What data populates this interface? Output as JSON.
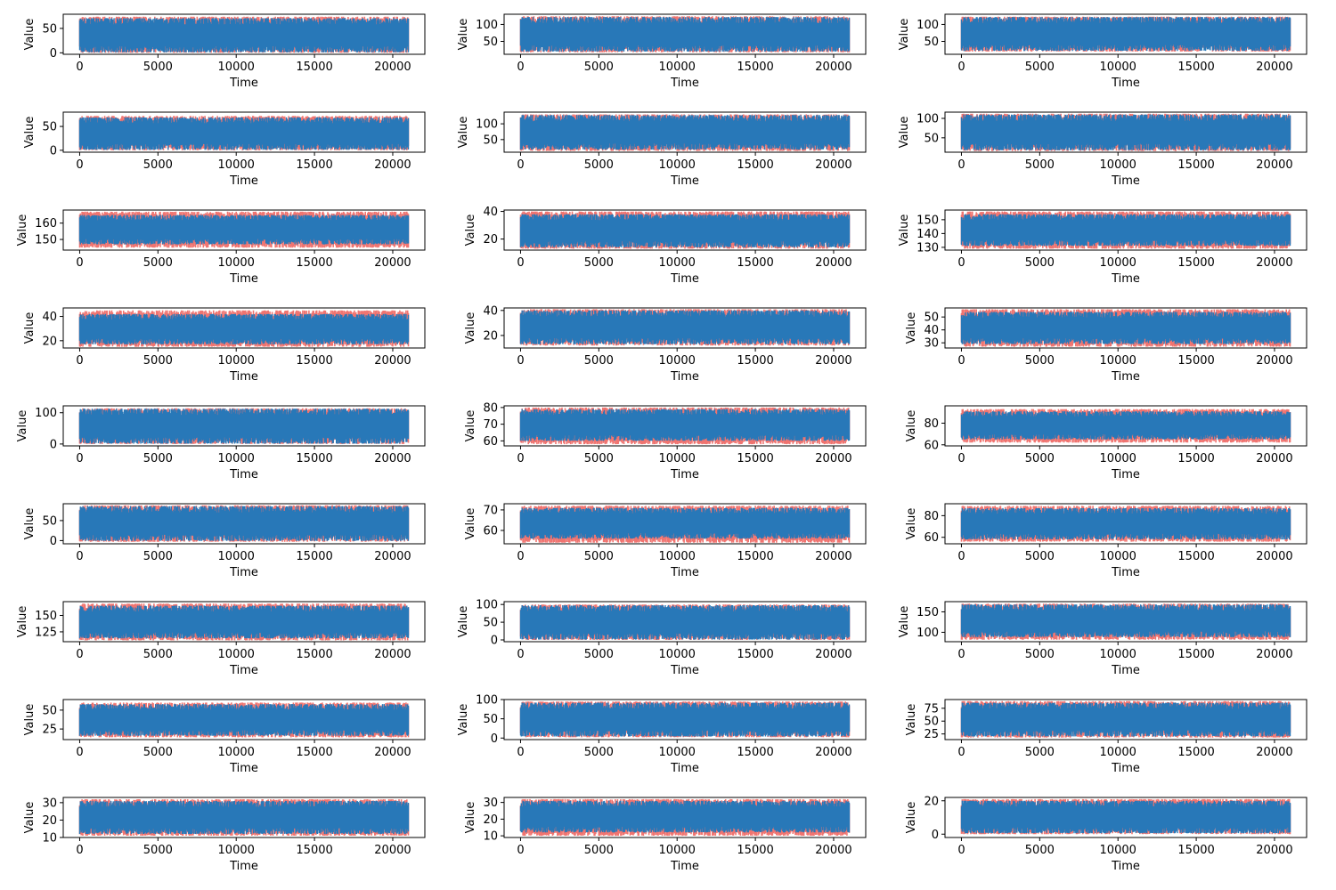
{
  "figure": {
    "background": "#ffffff"
  },
  "colors": {
    "real": "#f07470",
    "generated": "#2878b8",
    "axis": "#000000"
  },
  "chart_data": [
    {
      "type": "line",
      "xlabel": "Time",
      "ylabel": "Value",
      "xlim": [
        -1050,
        22050
      ],
      "ylim": [
        -3,
        79
      ],
      "xticks": [
        0,
        5000,
        10000,
        15000,
        20000
      ],
      "xticklabels": [
        "0",
        "5000",
        "10000",
        "15000",
        "20000"
      ],
      "yticks": [
        0,
        50
      ],
      "yticklabels": [
        "0",
        "50"
      ],
      "series": [
        {
          "envelope_min": 0,
          "envelope_max": 74
        },
        {
          "envelope_min": 1,
          "envelope_max": 71
        }
      ]
    },
    {
      "type": "line",
      "xlabel": "Time",
      "ylabel": "Value",
      "xlim": [
        -1050,
        22050
      ],
      "ylim": [
        12,
        130
      ],
      "xticks": [
        0,
        5000,
        10000,
        15000,
        20000
      ],
      "xticklabels": [
        "0",
        "5000",
        "10000",
        "15000",
        "20000"
      ],
      "yticks": [
        50,
        100
      ],
      "yticklabels": [
        "50",
        "100"
      ],
      "series": [
        {
          "envelope_min": 18,
          "envelope_max": 124
        },
        {
          "envelope_min": 20,
          "envelope_max": 122
        }
      ]
    },
    {
      "type": "line",
      "xlabel": "Time",
      "ylabel": "Value",
      "xlim": [
        -1050,
        22050
      ],
      "ylim": [
        12,
        130
      ],
      "xticks": [
        0,
        5000,
        10000,
        15000,
        20000
      ],
      "xticklabels": [
        "0",
        "5000",
        "10000",
        "15000",
        "20000"
      ],
      "yticks": [
        50,
        100
      ],
      "yticklabels": [
        "50",
        "100"
      ],
      "series": [
        {
          "envelope_min": 20,
          "envelope_max": 123
        },
        {
          "envelope_min": 22,
          "envelope_max": 122
        }
      ]
    },
    {
      "type": "line",
      "xlabel": "Time",
      "ylabel": "Value",
      "xlim": [
        -1050,
        22050
      ],
      "ylim": [
        -4,
        80
      ],
      "xticks": [
        0,
        5000,
        10000,
        15000,
        20000
      ],
      "xticklabels": [
        "0",
        "5000",
        "10000",
        "15000",
        "20000"
      ],
      "yticks": [
        0,
        50
      ],
      "yticklabels": [
        "0",
        "50"
      ],
      "series": [
        {
          "envelope_min": 0,
          "envelope_max": 72
        },
        {
          "envelope_min": 1,
          "envelope_max": 69
        }
      ]
    },
    {
      "type": "line",
      "xlabel": "Time",
      "ylabel": "Value",
      "xlim": [
        -1050,
        22050
      ],
      "ylim": [
        10,
        137
      ],
      "xticks": [
        0,
        5000,
        10000,
        15000,
        20000
      ],
      "xticklabels": [
        "0",
        "5000",
        "10000",
        "15000",
        "20000"
      ],
      "yticks": [
        50,
        100
      ],
      "yticklabels": [
        "50",
        "100"
      ],
      "series": [
        {
          "envelope_min": 14,
          "envelope_max": 130
        },
        {
          "envelope_min": 18,
          "envelope_max": 128
        }
      ]
    },
    {
      "type": "line",
      "xlabel": "Time",
      "ylabel": "Value",
      "xlim": [
        -1050,
        22050
      ],
      "ylim": [
        13,
        116
      ],
      "xticks": [
        0,
        5000,
        10000,
        15000,
        20000
      ],
      "xticklabels": [
        "0",
        "5000",
        "10000",
        "15000",
        "20000"
      ],
      "yticks": [
        50,
        100
      ],
      "yticklabels": [
        "50",
        "100"
      ],
      "series": [
        {
          "envelope_min": 16,
          "envelope_max": 112
        },
        {
          "envelope_min": 18,
          "envelope_max": 110
        }
      ]
    },
    {
      "type": "line",
      "xlabel": "Time",
      "ylabel": "Value",
      "xlim": [
        -1050,
        22050
      ],
      "ylim": [
        143.5,
        168
      ],
      "xticks": [
        0,
        5000,
        10000,
        15000,
        20000
      ],
      "xticklabels": [
        "0",
        "5000",
        "10000",
        "15000",
        "20000"
      ],
      "yticks": [
        150,
        160
      ],
      "yticklabels": [
        "150",
        "160"
      ],
      "series": [
        {
          "envelope_min": 145,
          "envelope_max": 167
        },
        {
          "envelope_min": 147,
          "envelope_max": 165
        }
      ]
    },
    {
      "type": "line",
      "xlabel": "Time",
      "ylabel": "Value",
      "xlim": [
        -1050,
        22050
      ],
      "ylim": [
        12,
        41
      ],
      "xticks": [
        0,
        5000,
        10000,
        15000,
        20000
      ],
      "xticklabels": [
        "0",
        "5000",
        "10000",
        "15000",
        "20000"
      ],
      "yticks": [
        20,
        40
      ],
      "yticklabels": [
        "20",
        "40"
      ],
      "series": [
        {
          "envelope_min": 13,
          "envelope_max": 40
        },
        {
          "envelope_min": 14,
          "envelope_max": 38
        }
      ]
    },
    {
      "type": "line",
      "xlabel": "Time",
      "ylabel": "Value",
      "xlim": [
        -1050,
        22050
      ],
      "ylim": [
        128,
        157
      ],
      "xticks": [
        0,
        5000,
        10000,
        15000,
        20000
      ],
      "xticklabels": [
        "0",
        "5000",
        "10000",
        "15000",
        "20000"
      ],
      "yticks": [
        130,
        140,
        150
      ],
      "yticklabels": [
        "130",
        "140",
        "150"
      ],
      "series": [
        {
          "envelope_min": 129,
          "envelope_max": 156
        },
        {
          "envelope_min": 131,
          "envelope_max": 154
        }
      ]
    },
    {
      "type": "line",
      "xlabel": "Time",
      "ylabel": "Value",
      "xlim": [
        -1050,
        22050
      ],
      "ylim": [
        14,
        47
      ],
      "xticks": [
        0,
        5000,
        10000,
        15000,
        20000
      ],
      "xticklabels": [
        "0",
        "5000",
        "10000",
        "15000",
        "20000"
      ],
      "yticks": [
        20,
        40
      ],
      "yticklabels": [
        "20",
        "40"
      ],
      "series": [
        {
          "envelope_min": 15,
          "envelope_max": 45
        },
        {
          "envelope_min": 17,
          "envelope_max": 42
        }
      ]
    },
    {
      "type": "line",
      "xlabel": "Time",
      "ylabel": "Value",
      "xlim": [
        -1050,
        22050
      ],
      "ylim": [
        10,
        42
      ],
      "xticks": [
        0,
        5000,
        10000,
        15000,
        20000
      ],
      "xticklabels": [
        "0",
        "5000",
        "10000",
        "15000",
        "20000"
      ],
      "yticks": [
        20,
        40
      ],
      "yticklabels": [
        "20",
        "40"
      ],
      "series": [
        {
          "envelope_min": 12,
          "envelope_max": 41
        },
        {
          "envelope_min": 13,
          "envelope_max": 40
        }
      ]
    },
    {
      "type": "line",
      "xlabel": "Time",
      "ylabel": "Value",
      "xlim": [
        -1050,
        22050
      ],
      "ylim": [
        26,
        57
      ],
      "xticks": [
        0,
        5000,
        10000,
        15000,
        20000
      ],
      "xticklabels": [
        "0",
        "5000",
        "10000",
        "15000",
        "20000"
      ],
      "yticks": [
        30,
        40,
        50
      ],
      "yticklabels": [
        "30",
        "40",
        "50"
      ],
      "series": [
        {
          "envelope_min": 27,
          "envelope_max": 56
        },
        {
          "envelope_min": 29,
          "envelope_max": 54
        }
      ]
    },
    {
      "type": "line",
      "xlabel": "Time",
      "ylabel": "Value",
      "xlim": [
        -1050,
        22050
      ],
      "ylim": [
        -6,
        122
      ],
      "xticks": [
        0,
        5000,
        10000,
        15000,
        20000
      ],
      "xticklabels": [
        "0",
        "5000",
        "10000",
        "15000",
        "20000"
      ],
      "yticks": [
        0,
        100
      ],
      "yticklabels": [
        "0",
        "100"
      ],
      "series": [
        {
          "envelope_min": 0,
          "envelope_max": 114
        },
        {
          "envelope_min": 1,
          "envelope_max": 113
        }
      ]
    },
    {
      "type": "line",
      "xlabel": "Time",
      "ylabel": "Value",
      "xlim": [
        -1050,
        22050
      ],
      "ylim": [
        57,
        81
      ],
      "xticks": [
        0,
        5000,
        10000,
        15000,
        20000
      ],
      "xticklabels": [
        "0",
        "5000",
        "10000",
        "15000",
        "20000"
      ],
      "yticks": [
        60,
        70,
        80
      ],
      "yticklabels": [
        "60",
        "70",
        "80"
      ],
      "series": [
        {
          "envelope_min": 58,
          "envelope_max": 80
        },
        {
          "envelope_min": 60,
          "envelope_max": 79
        }
      ]
    },
    {
      "type": "line",
      "xlabel": "Time",
      "ylabel": "Value",
      "xlim": [
        -1050,
        22050
      ],
      "ylim": [
        59,
        96
      ],
      "xticks": [
        0,
        5000,
        10000,
        15000,
        20000
      ],
      "xticklabels": [
        "0",
        "5000",
        "10000",
        "15000",
        "20000"
      ],
      "yticks": [
        60,
        80
      ],
      "yticklabels": [
        "60",
        "80"
      ],
      "series": [
        {
          "envelope_min": 62,
          "envelope_max": 93
        },
        {
          "envelope_min": 65,
          "envelope_max": 91
        }
      ]
    },
    {
      "type": "line",
      "xlabel": "Time",
      "ylabel": "Value",
      "xlim": [
        -1050,
        22050
      ],
      "ylim": [
        -8,
        92
      ],
      "xticks": [
        0,
        5000,
        10000,
        15000,
        20000
      ],
      "xticklabels": [
        "0",
        "5000",
        "10000",
        "15000",
        "20000"
      ],
      "yticks": [
        0,
        50
      ],
      "yticklabels": [
        "0",
        "50"
      ],
      "series": [
        {
          "envelope_min": -3,
          "envelope_max": 88
        },
        {
          "envelope_min": -1,
          "envelope_max": 86
        }
      ]
    },
    {
      "type": "line",
      "xlabel": "Time",
      "ylabel": "Value",
      "xlim": [
        -1050,
        22050
      ],
      "ylim": [
        53.5,
        73
      ],
      "xticks": [
        0,
        5000,
        10000,
        15000,
        20000
      ],
      "xticklabels": [
        "0",
        "5000",
        "10000",
        "15000",
        "20000"
      ],
      "yticks": [
        60,
        70
      ],
      "yticklabels": [
        "60",
        "70"
      ],
      "series": [
        {
          "envelope_min": 54,
          "envelope_max": 72
        },
        {
          "envelope_min": 56,
          "envelope_max": 71
        }
      ]
    },
    {
      "type": "line",
      "xlabel": "Time",
      "ylabel": "Value",
      "xlim": [
        -1050,
        22050
      ],
      "ylim": [
        54,
        91
      ],
      "xticks": [
        0,
        5000,
        10000,
        15000,
        20000
      ],
      "xticklabels": [
        "0",
        "5000",
        "10000",
        "15000",
        "20000"
      ],
      "yticks": [
        60,
        80
      ],
      "yticklabels": [
        "60",
        "80"
      ],
      "series": [
        {
          "envelope_min": 56,
          "envelope_max": 89
        },
        {
          "envelope_min": 58,
          "envelope_max": 87
        }
      ]
    },
    {
      "type": "line",
      "xlabel": "Time",
      "ylabel": "Value",
      "xlim": [
        -1050,
        22050
      ],
      "ylim": [
        110,
        171
      ],
      "xticks": [
        0,
        5000,
        10000,
        15000,
        20000
      ],
      "xticklabels": [
        "0",
        "5000",
        "10000",
        "15000",
        "20000"
      ],
      "yticks": [
        125,
        150
      ],
      "yticklabels": [
        "125",
        "150"
      ],
      "series": [
        {
          "envelope_min": 112,
          "envelope_max": 168
        },
        {
          "envelope_min": 115,
          "envelope_max": 165
        }
      ]
    },
    {
      "type": "line",
      "xlabel": "Time",
      "ylabel": "Value",
      "xlim": [
        -1050,
        22050
      ],
      "ylim": [
        -5,
        108
      ],
      "xticks": [
        0,
        5000,
        10000,
        15000,
        20000
      ],
      "xticklabels": [
        "0",
        "5000",
        "10000",
        "15000",
        "20000"
      ],
      "yticks": [
        0,
        50,
        100
      ],
      "yticklabels": [
        "0",
        "50",
        "100"
      ],
      "series": [
        {
          "envelope_min": 0,
          "envelope_max": 100
        },
        {
          "envelope_min": 1,
          "envelope_max": 98
        }
      ]
    },
    {
      "type": "line",
      "xlabel": "Time",
      "ylabel": "Value",
      "xlim": [
        -1050,
        22050
      ],
      "ylim": [
        77,
        175
      ],
      "xticks": [
        0,
        5000,
        10000,
        15000,
        20000
      ],
      "xticklabels": [
        "0",
        "5000",
        "10000",
        "15000",
        "20000"
      ],
      "yticks": [
        100,
        150
      ],
      "yticklabels": [
        "100",
        "150"
      ],
      "series": [
        {
          "envelope_min": 82,
          "envelope_max": 170
        },
        {
          "envelope_min": 88,
          "envelope_max": 168
        }
      ]
    },
    {
      "type": "line",
      "xlabel": "Time",
      "ylabel": "Value",
      "xlim": [
        -1050,
        22050
      ],
      "ylim": [
        11,
        64
      ],
      "xticks": [
        0,
        5000,
        10000,
        15000,
        20000
      ],
      "xticklabels": [
        "0",
        "5000",
        "10000",
        "15000",
        "20000"
      ],
      "yticks": [
        25,
        50
      ],
      "yticklabels": [
        "25",
        "50"
      ],
      "series": [
        {
          "envelope_min": 14,
          "envelope_max": 60
        },
        {
          "envelope_min": 16,
          "envelope_max": 58
        }
      ]
    },
    {
      "type": "line",
      "xlabel": "Time",
      "ylabel": "Value",
      "xlim": [
        -1050,
        22050
      ],
      "ylim": [
        -4,
        100
      ],
      "xticks": [
        0,
        5000,
        10000,
        15000,
        20000
      ],
      "xticklabels": [
        "0",
        "5000",
        "10000",
        "15000",
        "20000"
      ],
      "yticks": [
        0,
        50,
        100
      ],
      "yticklabels": [
        "0",
        "50",
        "100"
      ],
      "series": [
        {
          "envelope_min": 2,
          "envelope_max": 95
        },
        {
          "envelope_min": 4,
          "envelope_max": 92
        }
      ]
    },
    {
      "type": "line",
      "xlabel": "Time",
      "ylabel": "Value",
      "xlim": [
        -1050,
        22050
      ],
      "ylim": [
        14,
        92
      ],
      "xticks": [
        0,
        5000,
        10000,
        15000,
        20000
      ],
      "xticklabels": [
        "0",
        "5000",
        "10000",
        "15000",
        "20000"
      ],
      "yticks": [
        25,
        50,
        75
      ],
      "yticklabels": [
        "25",
        "50",
        "75"
      ],
      "series": [
        {
          "envelope_min": 18,
          "envelope_max": 89
        },
        {
          "envelope_min": 20,
          "envelope_max": 86
        }
      ]
    },
    {
      "type": "line",
      "xlabel": "Time",
      "ylabel": "Value",
      "xlim": [
        -1050,
        22050
      ],
      "ylim": [
        10,
        33
      ],
      "xticks": [
        0,
        5000,
        10000,
        15000,
        20000
      ],
      "xticklabels": [
        "0",
        "5000",
        "10000",
        "15000",
        "20000"
      ],
      "yticks": [
        10,
        20,
        30
      ],
      "yticklabels": [
        "10",
        "20",
        "30"
      ],
      "series": [
        {
          "envelope_min": 11,
          "envelope_max": 32
        },
        {
          "envelope_min": 12,
          "envelope_max": 31
        }
      ]
    },
    {
      "type": "line",
      "xlabel": "Time",
      "ylabel": "Value",
      "xlim": [
        -1050,
        22050
      ],
      "ylim": [
        9,
        33
      ],
      "xticks": [
        0,
        5000,
        10000,
        15000,
        20000
      ],
      "xticklabels": [
        "0",
        "5000",
        "10000",
        "15000",
        "20000"
      ],
      "yticks": [
        10,
        20,
        30
      ],
      "yticklabels": [
        "10",
        "20",
        "30"
      ],
      "series": [
        {
          "envelope_min": 10,
          "envelope_max": 32
        },
        {
          "envelope_min": 12,
          "envelope_max": 31
        }
      ]
    },
    {
      "type": "line",
      "xlabel": "Time",
      "ylabel": "Value",
      "xlim": [
        -1050,
        22050
      ],
      "ylim": [
        -2,
        22
      ],
      "xticks": [
        0,
        5000,
        10000,
        15000,
        20000
      ],
      "xticklabels": [
        "0",
        "5000",
        "10000",
        "15000",
        "20000"
      ],
      "yticks": [
        0,
        20
      ],
      "yticklabels": [
        "0",
        "20"
      ],
      "series": [
        {
          "envelope_min": 0,
          "envelope_max": 21
        },
        {
          "envelope_min": 0.5,
          "envelope_max": 20
        }
      ]
    }
  ]
}
